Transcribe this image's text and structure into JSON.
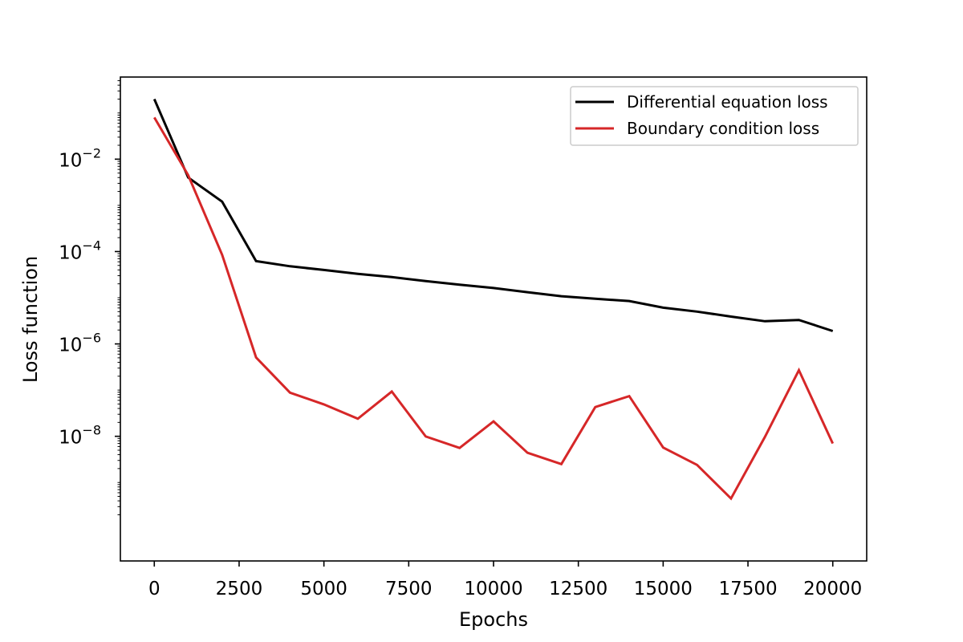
{
  "chart_data": {
    "type": "line",
    "title": "",
    "xlabel": "Epochs",
    "ylabel": "Loss function",
    "xlim": [
      -1000,
      21000
    ],
    "ylim": [
      2e-11,
      0.6
    ],
    "yscale": "log",
    "grid": false,
    "legend_position": "top-right",
    "x_ticks": [
      0,
      2500,
      5000,
      7500,
      10000,
      12500,
      15000,
      17500,
      20000
    ],
    "y_ticks": [
      {
        "value": 0.01,
        "base": "10",
        "exp": "−2"
      },
      {
        "value": 0.0001,
        "base": "10",
        "exp": "−4"
      },
      {
        "value": 1e-06,
        "base": "10",
        "exp": "−6"
      },
      {
        "value": 1e-08,
        "base": "10",
        "exp": "−8"
      }
    ],
    "x": [
      0,
      1000,
      2000,
      3000,
      4000,
      5000,
      6000,
      7000,
      8000,
      9000,
      10000,
      11000,
      12000,
      13000,
      14000,
      15000,
      16000,
      17000,
      18000,
      19000,
      20000
    ],
    "series": [
      {
        "name": "Differential equation loss",
        "color": "#000000",
        "values": [
          0.2,
          0.004,
          0.0012,
          6.2e-05,
          4.8e-05,
          4e-05,
          3.3e-05,
          2.8e-05,
          2.3e-05,
          1.92e-05,
          1.62e-05,
          1.32e-05,
          1.08e-05,
          9.5e-06,
          8.5e-06,
          6.1e-06,
          5e-06,
          3.9e-06,
          3.1e-06,
          3.3e-06,
          1.9e-06
        ]
      },
      {
        "name": "Boundary condition loss",
        "color": "#d62728",
        "values": [
          0.08,
          0.0045,
          8.5e-05,
          5.1e-07,
          8.8e-08,
          4.9e-08,
          2.4e-08,
          9.3e-08,
          9.9e-09,
          5.6e-09,
          2.1e-08,
          4.4e-09,
          2.5e-09,
          4.3e-08,
          7.4e-08,
          5.7e-09,
          2.4e-09,
          4.5e-10,
          9.7e-09,
          2.7e-07,
          7e-09
        ]
      }
    ]
  }
}
